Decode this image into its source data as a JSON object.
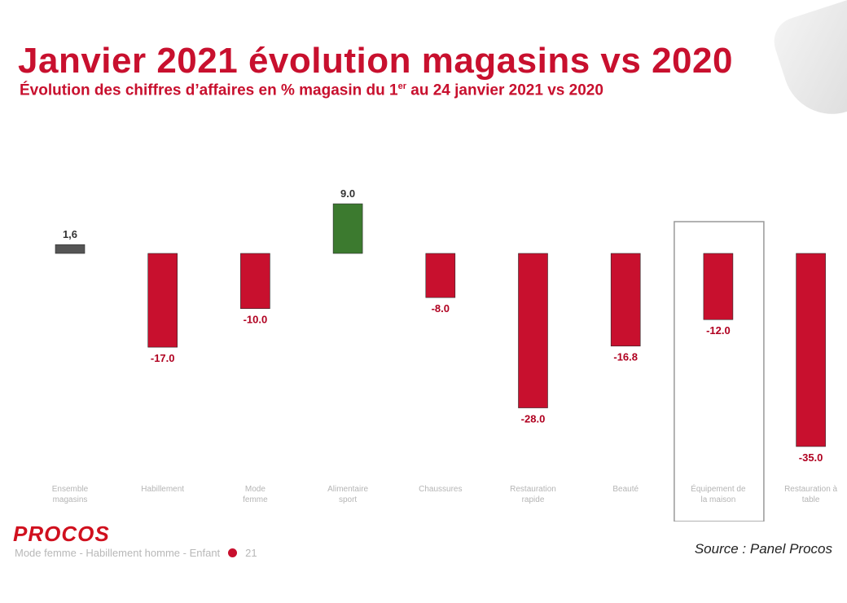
{
  "header": {
    "title": "Janvier 2021 évolution magasins vs 2020",
    "subtitle_main": "Évolution des chiffres d’affaires en % magasin du 1",
    "subtitle_sup": "er",
    "subtitle_tail": " au 24 janvier 2021 vs 2020"
  },
  "footer": {
    "logo": "PROCOS",
    "legend_text": "Mode femme - Habillement homme - Enfant",
    "legend_value": "21",
    "source": "Source : Panel Procos"
  },
  "chart_data": {
    "type": "bar",
    "values": [
      1.6,
      -17.0,
      -10.0,
      9.0,
      -8.0,
      -28.0,
      -16.8,
      -12.0,
      -35.0
    ],
    "value_labels": [
      "1,6",
      "-17.0",
      "-10.0",
      "9.0",
      "-8.0",
      "-28.0",
      "-16.8",
      "-12.0",
      "-35.0"
    ],
    "categories": [
      "Ensemble magasins",
      "Habillement",
      "Mode femme",
      "Alimentaire sport",
      "Chaussures",
      "Restauration rapide",
      "Beauté",
      "Équipement de la maison",
      "Restauration à table"
    ],
    "colors": [
      "#555555",
      "#c8102e",
      "#c8102e",
      "#3c7a2f",
      "#c8102e",
      "#c8102e",
      "#c8102e",
      "#c8102e",
      "#c8102e"
    ],
    "highlighted_index": 7,
    "ylim": [
      -35,
      9
    ]
  }
}
